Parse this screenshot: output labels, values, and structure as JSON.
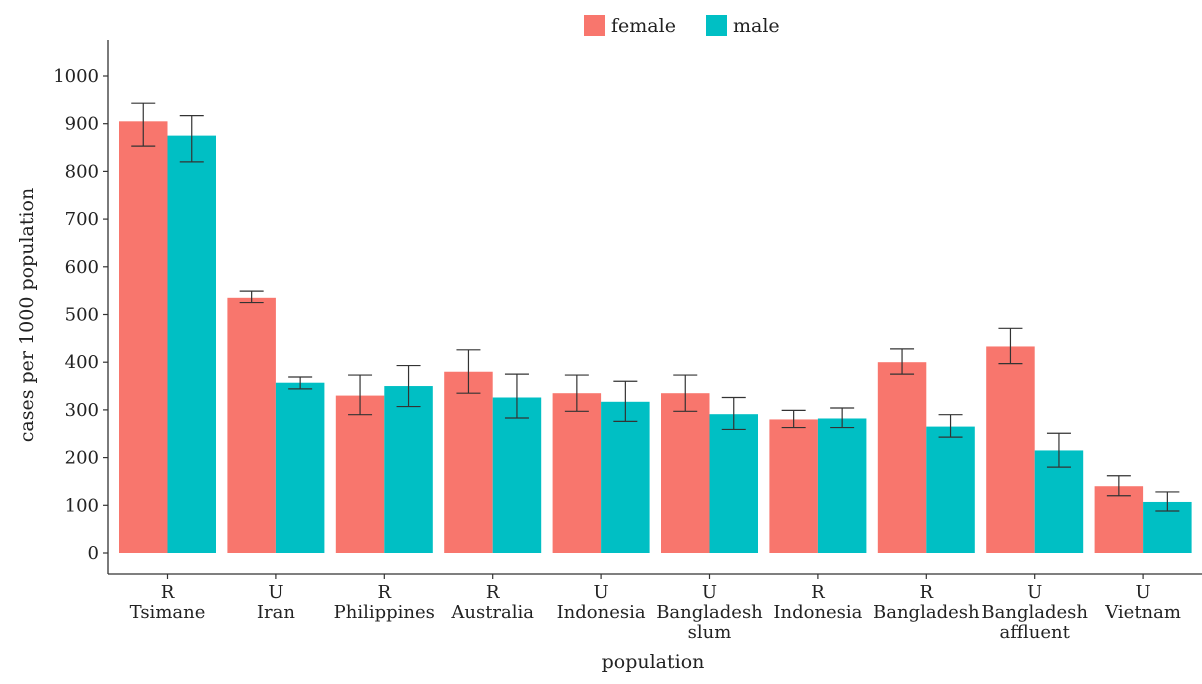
{
  "chart_data": {
    "type": "bar",
    "xlabel": "population",
    "ylabel": "cases per 1000 population",
    "ylim": [
      0,
      1000
    ],
    "yticks": [
      0,
      100,
      200,
      300,
      400,
      500,
      600,
      700,
      800,
      900,
      1000
    ],
    "legend_position": "top",
    "categories": [
      [
        "R",
        "Tsimane"
      ],
      [
        "U",
        "Iran"
      ],
      [
        "R",
        "Philippines"
      ],
      [
        "R",
        "Australia"
      ],
      [
        "U",
        "Indonesia"
      ],
      [
        "U",
        "Bangladesh",
        "slum"
      ],
      [
        "R",
        "Indonesia"
      ],
      [
        "R",
        "Bangladesh"
      ],
      [
        "U",
        "Bangladesh",
        "affluent"
      ],
      [
        "U",
        "Vietnam"
      ]
    ],
    "series": [
      {
        "name": "female",
        "color": "#F8766D",
        "values": [
          905,
          535,
          330,
          380,
          335,
          335,
          280,
          400,
          433,
          140
        ],
        "err_low": [
          853,
          525,
          290,
          335,
          297,
          297,
          263,
          375,
          397,
          120
        ],
        "err_high": [
          943,
          549,
          373,
          426,
          373,
          373,
          299,
          428,
          471,
          162
        ]
      },
      {
        "name": "male",
        "color": "#00BFC4",
        "values": [
          875,
          357,
          350,
          326,
          317,
          291,
          282,
          265,
          215,
          107
        ],
        "err_low": [
          820,
          344,
          307,
          283,
          276,
          259,
          263,
          243,
          180,
          88
        ],
        "err_high": [
          917,
          369,
          393,
          375,
          360,
          326,
          304,
          290,
          251,
          128
        ]
      }
    ]
  }
}
